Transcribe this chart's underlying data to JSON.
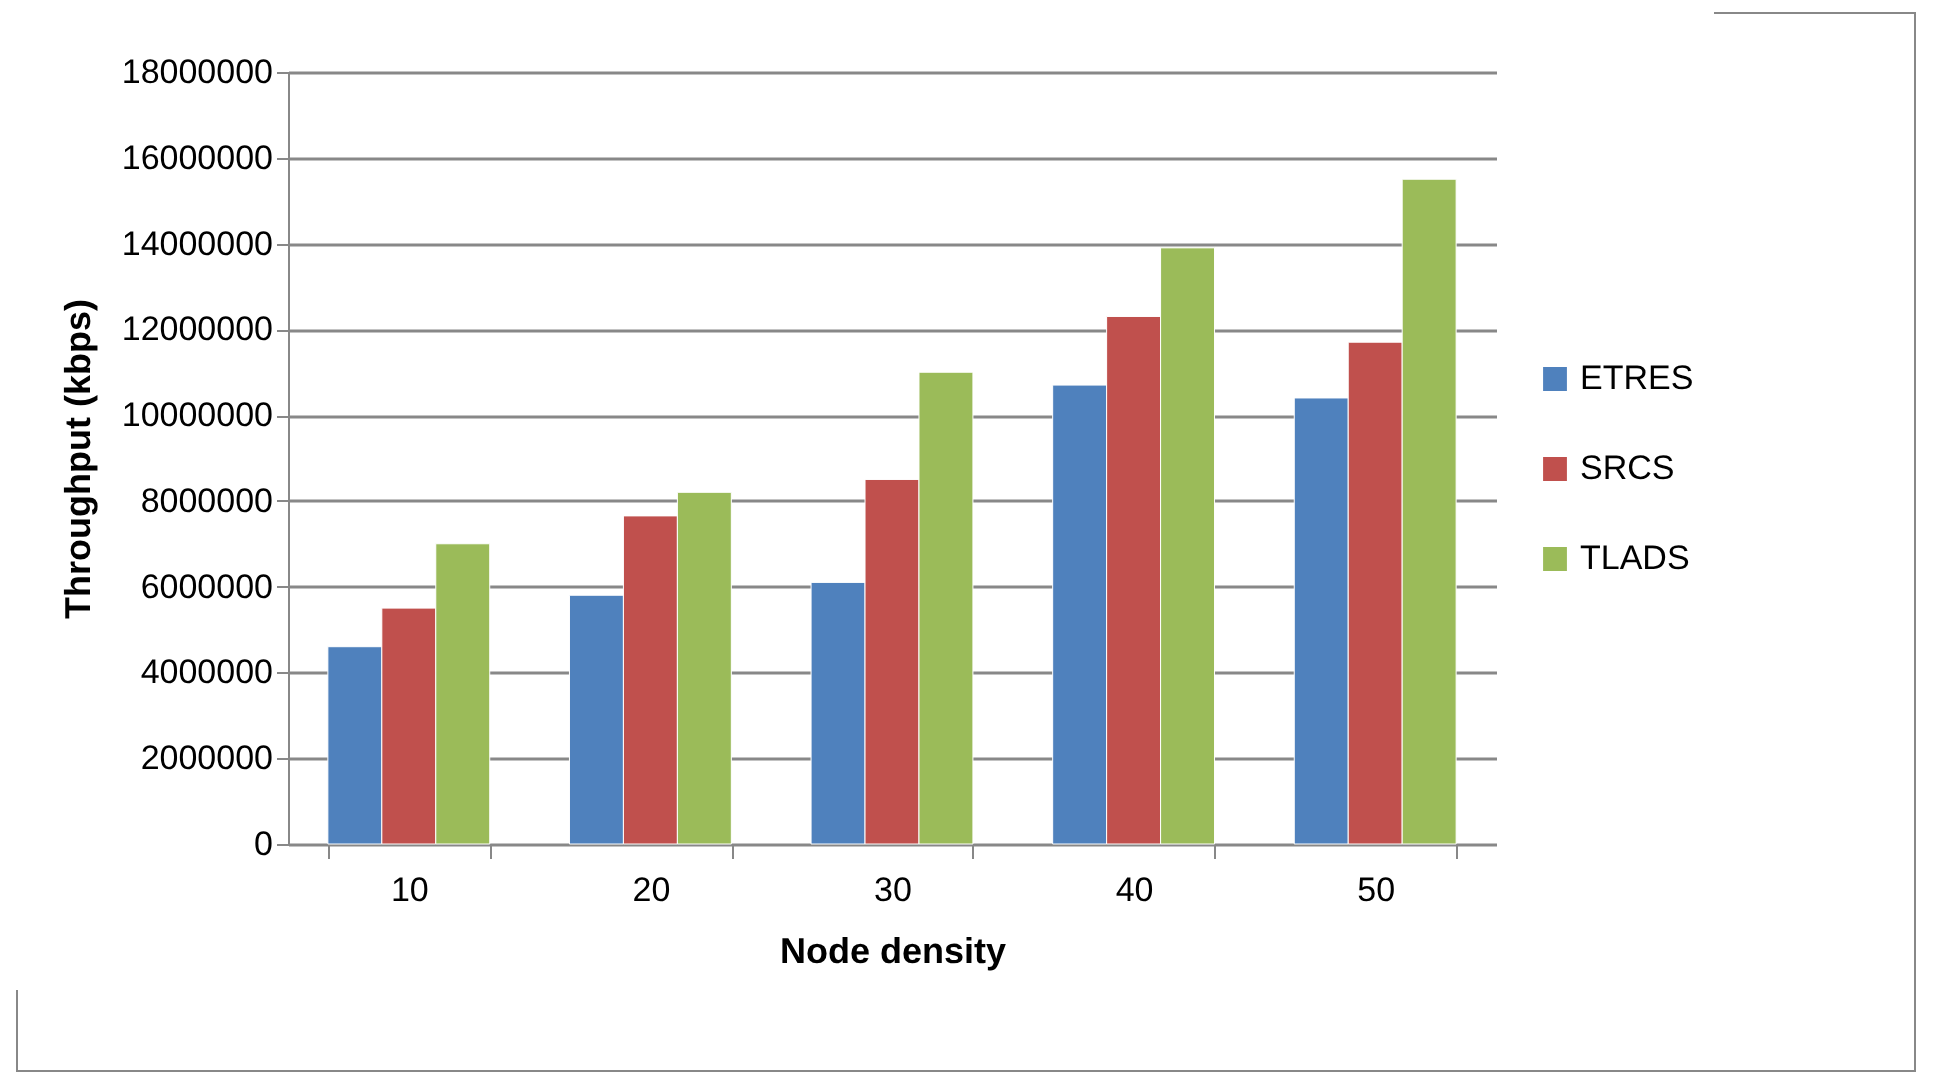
{
  "chart_data": {
    "type": "bar",
    "xlabel": "Node density",
    "ylabel": "Throughput (kbps)",
    "categories": [
      "10",
      "20",
      "30",
      "40",
      "50"
    ],
    "series": [
      {
        "name": "ETRES",
        "color": "#4f81bd",
        "values": [
          4600000,
          5800000,
          6100000,
          10700000,
          10400000
        ]
      },
      {
        "name": "SRCS",
        "color": "#c0504d",
        "values": [
          5500000,
          7650000,
          8500000,
          12300000,
          11700000
        ]
      },
      {
        "name": "TLADS",
        "color": "#9bbb59",
        "values": [
          7000000,
          8200000,
          11000000,
          13900000,
          15500000
        ]
      }
    ],
    "ylim": [
      0,
      18000000
    ],
    "yticks": [
      0,
      2000000,
      4000000,
      6000000,
      8000000,
      10000000,
      12000000,
      14000000,
      16000000,
      18000000
    ],
    "grid": "y",
    "legend": "right"
  }
}
